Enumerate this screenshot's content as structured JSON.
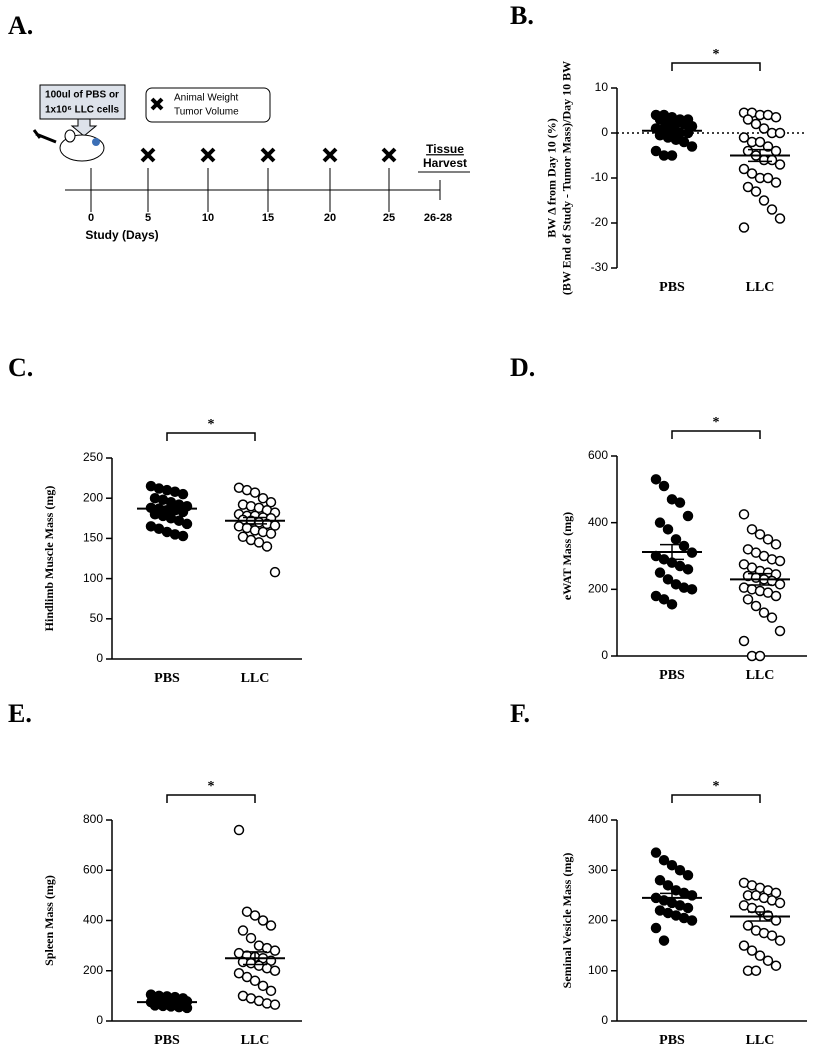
{
  "timeline": {
    "panel": "A.",
    "injection": [
      "100ul of PBS or",
      "1x10⁶ LLC cells"
    ],
    "legend": [
      "Animal Weight",
      "Tumor Volume"
    ],
    "ticks": [
      "0",
      "5",
      "10",
      "15",
      "20",
      "25",
      "26-28"
    ],
    "xlabel": "Study (Days)",
    "harvest": [
      "Tissue",
      "Harvest"
    ]
  },
  "chart_data": [
    {
      "type": "strip",
      "panel": "B.",
      "ylabel": [
        "BW Δ from Day 10 (%)",
        "(BW End of Study - Tumor Mass)/Day 10 BW"
      ],
      "categories": [
        "PBS",
        "LLC"
      ],
      "markers": [
        "filled",
        "open"
      ],
      "points": [
        [
          4,
          4,
          3.5,
          3,
          3,
          3,
          2.5,
          2,
          2,
          1.5,
          1,
          1,
          0.5,
          0,
          0,
          -0.5,
          -1,
          -1.5,
          -2,
          -3,
          -4,
          -5,
          -5
        ],
        [
          4.5,
          4.5,
          4,
          4,
          3.5,
          3,
          2,
          1,
          0,
          0,
          -1,
          -2,
          -2,
          -3,
          -4,
          -4,
          -5,
          -6,
          -6,
          -7,
          -8,
          -9,
          -10,
          -10,
          -11,
          -12,
          -13,
          -15,
          -17,
          -19,
          -21
        ]
      ],
      "means": [
        0.5,
        -5
      ],
      "sem": [
        1,
        1.3
      ],
      "significance": "*",
      "ylim": [
        -30,
        10
      ],
      "yticks": [
        10,
        0,
        -10,
        -20,
        -30
      ],
      "zero_line": true,
      "x_axis_line": false
    },
    {
      "type": "strip",
      "panel": "C.",
      "ylabel": [
        "Hindlimb Muscle Mass (mg)"
      ],
      "categories": [
        "PBS",
        "LLC"
      ],
      "markers": [
        "filled",
        "open"
      ],
      "points": [
        [
          215,
          212,
          210,
          208,
          205,
          200,
          198,
          195,
          192,
          190,
          188,
          187,
          185,
          185,
          183,
          180,
          178,
          175,
          172,
          168,
          165,
          162,
          158,
          155,
          153
        ],
        [
          213,
          210,
          207,
          200,
          195,
          192,
          190,
          188,
          185,
          182,
          180,
          178,
          178,
          176,
          175,
          173,
          172,
          170,
          168,
          166,
          165,
          163,
          160,
          158,
          156,
          152,
          148,
          145,
          140,
          108
        ]
      ],
      "means": [
        187,
        172
      ],
      "sem": [
        3,
        4
      ],
      "significance": "*",
      "ylim": [
        0,
        250
      ],
      "yticks": [
        0,
        50,
        100,
        150,
        200,
        250
      ],
      "zero_line": false,
      "x_axis_line": true
    },
    {
      "type": "strip",
      "panel": "D.",
      "ylabel": [
        "eWAT Mass (mg)"
      ],
      "categories": [
        "PBS",
        "LLC"
      ],
      "markers": [
        "filled",
        "open"
      ],
      "points": [
        [
          530,
          510,
          470,
          460,
          420,
          400,
          380,
          350,
          330,
          310,
          300,
          290,
          280,
          270,
          260,
          250,
          230,
          215,
          205,
          200,
          180,
          170,
          155
        ],
        [
          425,
          380,
          365,
          350,
          335,
          320,
          310,
          300,
          290,
          285,
          275,
          265,
          255,
          250,
          245,
          240,
          235,
          230,
          225,
          215,
          205,
          200,
          195,
          190,
          180,
          170,
          150,
          130,
          115,
          75,
          45,
          0,
          0
        ]
      ],
      "means": [
        312,
        230
      ],
      "sem": [
        22,
        17
      ],
      "significance": "*",
      "ylim": [
        0,
        600
      ],
      "yticks": [
        0,
        200,
        400,
        600
      ],
      "zero_line": false,
      "x_axis_line": true
    },
    {
      "type": "strip",
      "panel": "E.",
      "ylabel": [
        "Spleen Mass (mg)"
      ],
      "categories": [
        "PBS",
        "LLC"
      ],
      "markers": [
        "filled",
        "open"
      ],
      "points": [
        [
          105,
          100,
          98,
          95,
          90,
          88,
          85,
          82,
          80,
          78,
          75,
          72,
          70,
          68,
          65,
          62,
          60,
          58,
          55,
          52
        ],
        [
          760,
          435,
          420,
          400,
          380,
          360,
          330,
          300,
          290,
          280,
          270,
          260,
          255,
          250,
          240,
          235,
          230,
          220,
          210,
          200,
          190,
          175,
          160,
          140,
          120,
          100,
          90,
          80,
          70,
          65
        ]
      ],
      "means": [
        75,
        250
      ],
      "sem": [
        4,
        25
      ],
      "significance": "*",
      "ylim": [
        0,
        800
      ],
      "yticks": [
        0,
        200,
        400,
        600,
        800
      ],
      "zero_line": false,
      "x_axis_line": true
    },
    {
      "type": "strip",
      "panel": "F.",
      "ylabel": [
        "Seminal Vesicle Mass (mg)"
      ],
      "categories": [
        "PBS",
        "LLC"
      ],
      "markers": [
        "filled",
        "open"
      ],
      "points": [
        [
          335,
          320,
          310,
          300,
          290,
          280,
          270,
          260,
          255,
          250,
          245,
          240,
          235,
          230,
          225,
          220,
          215,
          210,
          205,
          200,
          185,
          160
        ],
        [
          275,
          270,
          265,
          260,
          255,
          250,
          250,
          245,
          240,
          235,
          230,
          225,
          220,
          210,
          200,
          190,
          180,
          175,
          170,
          160,
          150,
          140,
          130,
          120,
          110,
          100,
          100
        ]
      ],
      "means": [
        245,
        208
      ],
      "sem": [
        9,
        9
      ],
      "significance": "*",
      "ylim": [
        0,
        400
      ],
      "yticks": [
        0,
        100,
        200,
        300,
        400
      ],
      "zero_line": false,
      "x_axis_line": true
    }
  ]
}
